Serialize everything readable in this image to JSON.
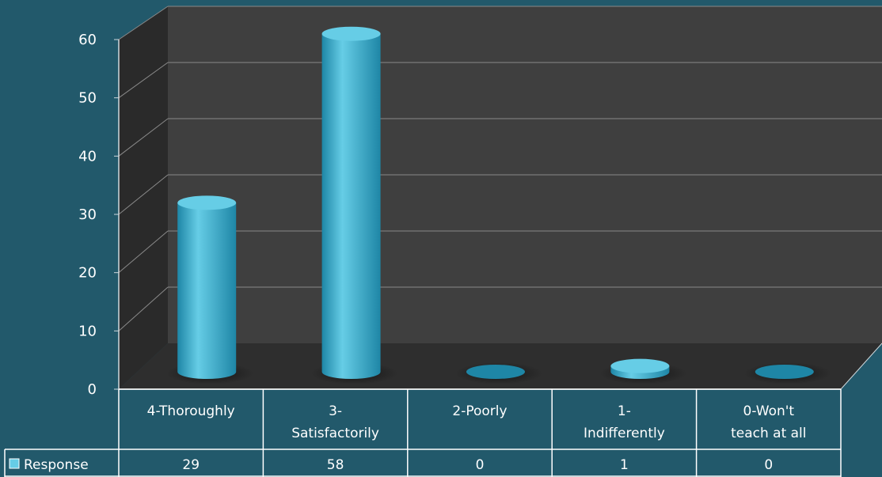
{
  "chart_data": {
    "type": "bar",
    "categories": [
      [
        "4-Thoroughly"
      ],
      [
        "3-",
        "Satisfactorily"
      ],
      [
        "2-Poorly"
      ],
      [
        "1-",
        "Indifferently"
      ],
      [
        "0-Won't",
        "teach at all"
      ]
    ],
    "series": [
      {
        "name": "Response",
        "values": [
          29,
          58,
          0,
          1,
          0
        ]
      }
    ],
    "ylim": [
      0,
      60
    ],
    "yticks": [
      0,
      10,
      20,
      30,
      40,
      50,
      60
    ],
    "grid": true,
    "three_d": true,
    "data_table": true,
    "colors": {
      "background": "#22596b",
      "back_wall": "#3f3f3f",
      "side_wall": "#2a2a2a",
      "floor": "#2e2e2e",
      "bar": "#3aaed0",
      "bar_light": "#66cde6",
      "bar_dark": "#1e86a6",
      "grid": "#8a8a8a",
      "table_border": "#ffffff"
    }
  }
}
